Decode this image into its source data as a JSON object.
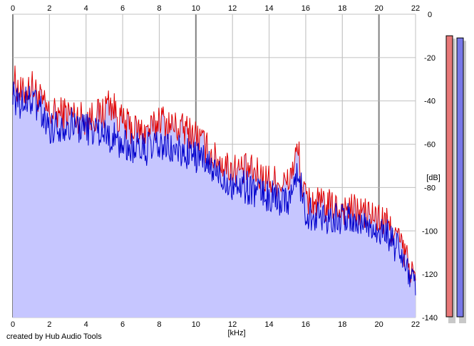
{
  "credit": "created by Hub Audio Tools",
  "chart_data": {
    "type": "area",
    "xlabel": "[kHz]",
    "ylabel": "[dB]",
    "xlim": [
      0,
      22
    ],
    "ylim": [
      -140,
      0
    ],
    "x_ticks": [
      0,
      2,
      4,
      6,
      8,
      10,
      12,
      14,
      16,
      18,
      20,
      22
    ],
    "y_ticks": [
      0,
      -20,
      -40,
      -60,
      -80,
      -100,
      -120,
      -140
    ],
    "grid": true,
    "colors": {
      "fill": "#c6c6ff",
      "left_channel": "#e00000",
      "right_channel": "#0000cc",
      "grid": "#c0c0c0",
      "grid_major": "#808080"
    },
    "series": [
      {
        "color": "#e00000",
        "x": [
          0,
          0.5,
          1,
          1.5,
          2,
          3,
          4,
          5,
          5.2,
          6,
          7,
          7.8,
          8,
          8.3,
          9,
          10,
          11,
          12,
          13,
          14,
          15,
          15.6,
          15.8,
          16,
          17,
          18,
          19,
          20,
          20.5,
          21,
          21.5,
          22
        ],
        "values": [
          -27,
          -35,
          -30,
          -37,
          -44,
          -43,
          -46,
          -43,
          -37,
          -48,
          -52,
          -50,
          -44,
          -48,
          -50,
          -53,
          -64,
          -69,
          -70,
          -74,
          -76,
          -60,
          -78,
          -83,
          -86,
          -87,
          -89,
          -92,
          -95,
          -100,
          -110,
          -121
        ]
      },
      {
        "color": "#0000cc",
        "x": [
          0,
          0.5,
          1,
          1.5,
          2,
          3,
          4,
          5,
          6,
          7,
          8,
          9,
          10,
          11,
          12,
          13,
          14,
          15,
          15.6,
          16,
          17,
          18,
          19,
          20,
          20.5,
          21,
          21.5,
          22
        ],
        "values": [
          -35,
          -40,
          -37,
          -42,
          -50,
          -48,
          -50,
          -52,
          -58,
          -60,
          -59,
          -61,
          -63,
          -70,
          -76,
          -78,
          -82,
          -83,
          -72,
          -89,
          -91,
          -92,
          -94,
          -97,
          -100,
          -106,
          -114,
          -124
        ]
      }
    ],
    "level_meters": [
      {
        "channel": "left",
        "color": "#e87878",
        "value_db": -5
      },
      {
        "channel": "right",
        "color": "#7878e8",
        "value_db": -6
      }
    ]
  }
}
